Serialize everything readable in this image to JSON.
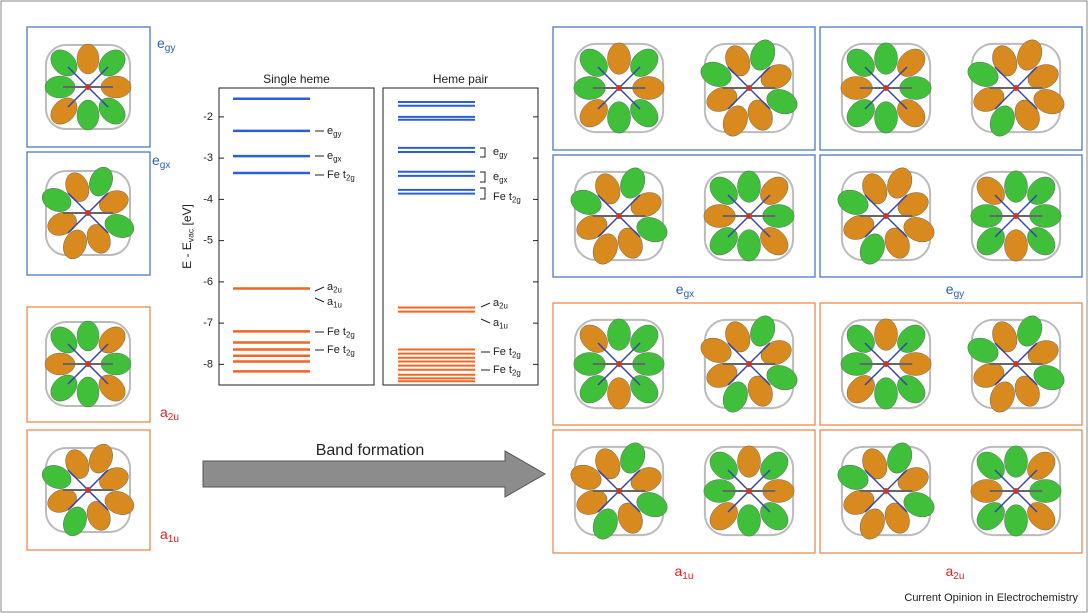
{
  "orbital_labels": {
    "left": [
      {
        "main": "e",
        "sub": "gy"
      },
      {
        "main": "e",
        "sub": "gx"
      },
      {
        "main": "a",
        "sub": "2u"
      },
      {
        "main": "a",
        "sub": "1u"
      }
    ],
    "bottom": [
      {
        "main": "e",
        "sub": "gx"
      },
      {
        "main": "e",
        "sub": "gy"
      },
      {
        "main": "a",
        "sub": "1u"
      },
      {
        "main": "a",
        "sub": "2u"
      }
    ]
  },
  "arrow_label": "Band formation",
  "credit": "Current Opinion in Electrochemistry",
  "chart_data": [
    {
      "type": "levels",
      "title": "Single heme",
      "ylabel": {
        "main": "E - E",
        "sub": "vac",
        "tail": " [eV]"
      },
      "ylim": [
        -8.5,
        -1.3
      ],
      "yticks": [
        -2,
        -3,
        -4,
        -5,
        -6,
        -7,
        -8
      ],
      "series": [
        {
          "color": "#2b5fd9",
          "values": [
            -1.56,
            -2.34,
            -2.95,
            -3.36
          ]
        },
        {
          "color": "#f26522",
          "values": [
            -6.16,
            -7.2,
            -7.47,
            -7.64,
            -7.79,
            -7.93,
            -8.17
          ]
        }
      ],
      "annotations": [
        {
          "main": "e",
          "sub": "gy"
        },
        {
          "main": "e",
          "sub": "gx"
        },
        {
          "main": "Fe t",
          "sub": "2g"
        },
        {
          "main": "a",
          "sub": "2u"
        },
        {
          "main": "a",
          "sub": "1u"
        },
        {
          "main": "Fe t",
          "sub": "2g"
        },
        {
          "main": "Fe t",
          "sub": "2g"
        }
      ]
    },
    {
      "type": "levels",
      "title": "Heme pair",
      "ylim": [
        -8.5,
        -1.3
      ],
      "yticks": [
        -2,
        -3,
        -4,
        -5,
        -6,
        -7,
        -8
      ],
      "series": [
        {
          "color": "#2b5fd9",
          "values": [
            -1.64,
            -1.73,
            -2.0,
            -2.07,
            -2.75,
            -2.85,
            -3.33,
            -3.43,
            -3.77,
            -3.86
          ]
        },
        {
          "color": "#f26522",
          "values": [
            -6.62,
            -6.72,
            -7.64,
            -7.74,
            -7.84,
            -7.93,
            -8.03,
            -8.13,
            -8.25,
            -8.34,
            -8.41
          ]
        }
      ],
      "annotations": [
        {
          "main": "e",
          "sub": "gy"
        },
        {
          "main": "e",
          "sub": "gx"
        },
        {
          "main": "Fe t",
          "sub": "2g"
        },
        {
          "main": "a",
          "sub": "2u"
        },
        {
          "main": "a",
          "sub": "1u"
        },
        {
          "main": "Fe t",
          "sub": "2g"
        },
        {
          "main": "Fe t",
          "sub": "2g"
        }
      ]
    }
  ]
}
